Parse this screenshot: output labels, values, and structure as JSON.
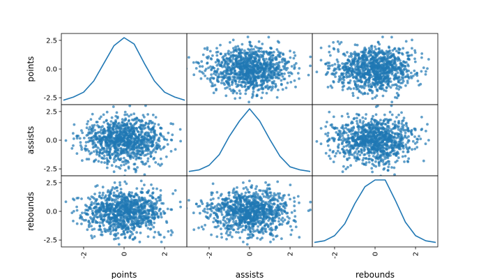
{
  "chart_data": {
    "type": "scatter",
    "plot_kind": "scatter_matrix",
    "diagonal": "kde",
    "variables": [
      "points",
      "assists",
      "rebounds"
    ],
    "marker_color": "#1f77b4",
    "marker_alpha": 0.7,
    "n_points": 1000,
    "distribution": "approximately standard normal, uncorrelated",
    "axis_ranges": {
      "points": [
        -3.1,
        3.1
      ],
      "assists": [
        -3.1,
        3.1
      ],
      "rebounds": [
        -3.1,
        3.1
      ]
    },
    "ytick_values": [
      -2.5,
      0.0,
      2.5
    ],
    "ytick_labels": [
      "-2.5",
      "0.0",
      "2.5"
    ],
    "xtick_values": [
      -2,
      0,
      2
    ],
    "xtick_labels": [
      "-2",
      "0",
      "2"
    ],
    "kde_points": {
      "x": [
        -3.0,
        -2.5,
        -2.0,
        -1.5,
        -1.0,
        -0.5,
        0.0,
        0.5,
        1.0,
        1.5,
        2.0,
        2.5,
        3.0
      ],
      "points": [
        0.01,
        0.03,
        0.06,
        0.13,
        0.24,
        0.35,
        0.4,
        0.36,
        0.24,
        0.13,
        0.06,
        0.03,
        0.01
      ],
      "assists": [
        0.01,
        0.02,
        0.05,
        0.12,
        0.24,
        0.34,
        0.42,
        0.34,
        0.22,
        0.11,
        0.04,
        0.02,
        0.01
      ],
      "rebounds": [
        0.01,
        0.02,
        0.05,
        0.12,
        0.24,
        0.34,
        0.38,
        0.38,
        0.26,
        0.13,
        0.05,
        0.02,
        0.01
      ]
    },
    "grid": false,
    "legend": "none"
  }
}
